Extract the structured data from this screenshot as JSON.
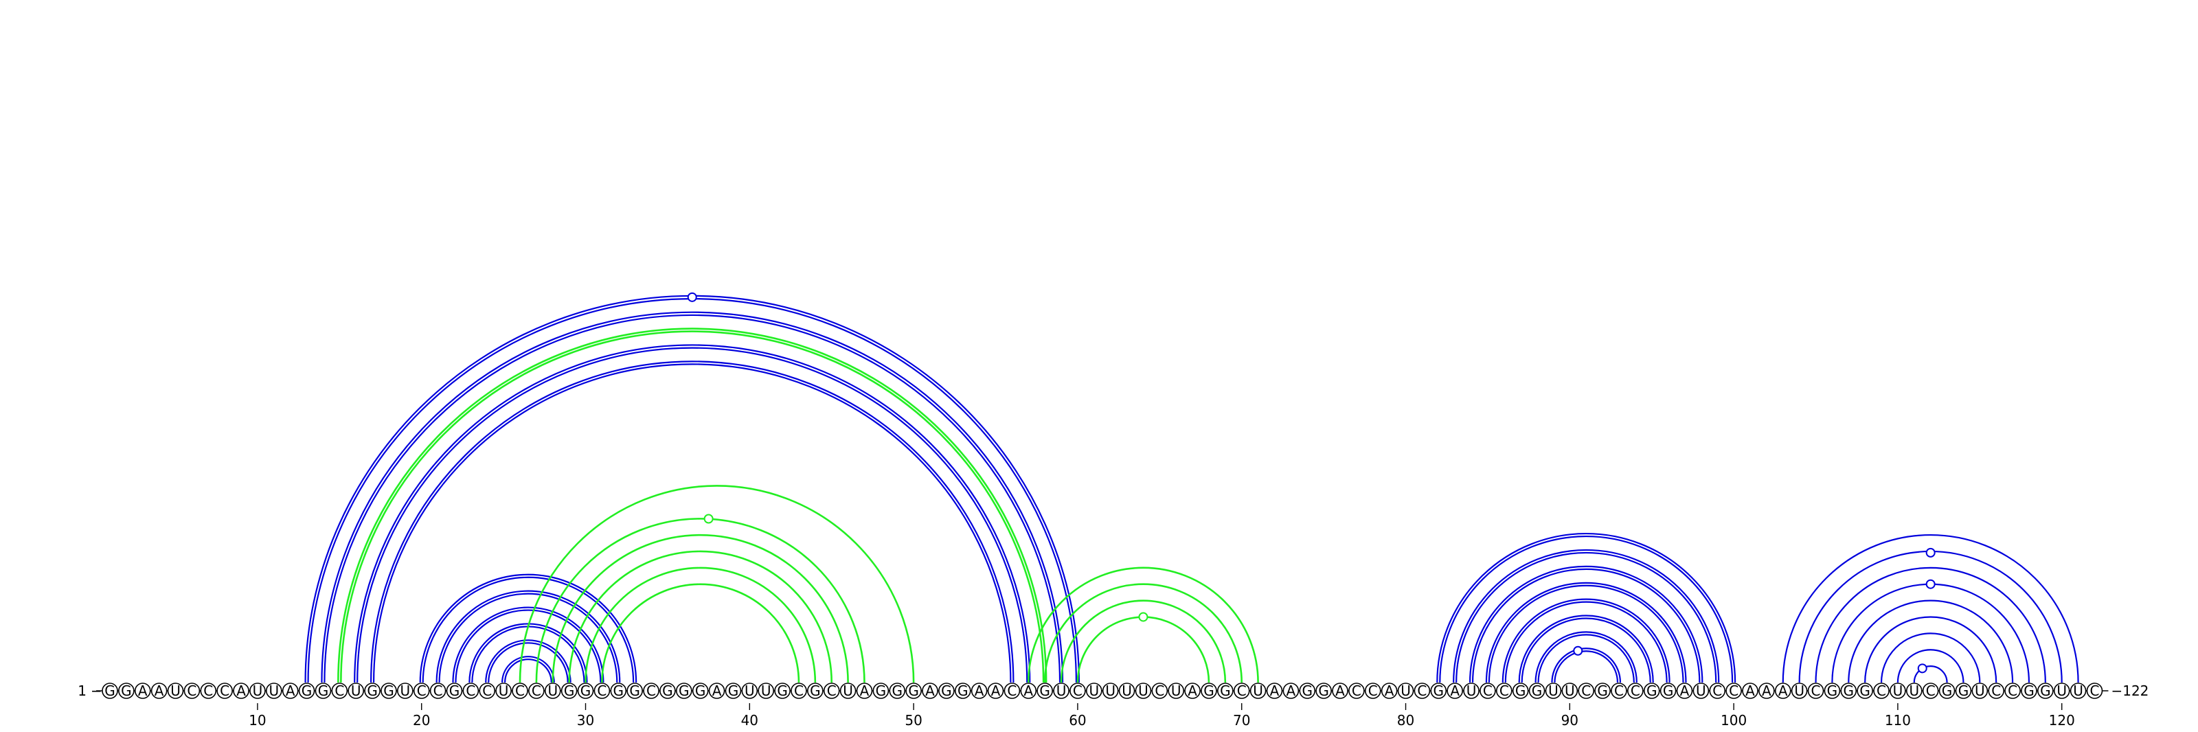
{
  "sequence": "GGAAUCCCAUUAGGCUGGUCCGCCUCCUGGCGGCGGGAGUUGCGCUAGGGAGGAACAGUCUUUUCUAGGCUAAGGACCAUCGAUCCGGUUCGCCGGAUCCAAAUCGGGCUUCGGUCCGGUUC",
  "start_label": "1",
  "end_label": "122",
  "ticks": [
    "10",
    "20",
    "30",
    "40",
    "50",
    "60",
    "70",
    "80",
    "90",
    "100",
    "110",
    "120"
  ],
  "colors": {
    "blue_arcs": "#0000dd",
    "green_arcs": "#22ee22",
    "backbone": "#000000"
  },
  "arc_groups": [
    {
      "color": "blue",
      "name": "long-stem-blue",
      "double": true,
      "pairs": [
        [
          13,
          60
        ],
        [
          14,
          59
        ],
        [
          16,
          57
        ],
        [
          17,
          56
        ]
      ],
      "marker_position": 36.5
    },
    {
      "color": "green",
      "name": "long-stem-green",
      "double": true,
      "pairs": [
        [
          15,
          58
        ]
      ]
    },
    {
      "color": "blue",
      "name": "stem-20s",
      "double": true,
      "pairs": [
        [
          20,
          33
        ],
        [
          21,
          32
        ],
        [
          22,
          31
        ],
        [
          23,
          30
        ],
        [
          24,
          29
        ],
        [
          25,
          28
        ]
      ]
    },
    {
      "color": "green",
      "name": "pseudoknot-green",
      "double": false,
      "pairs": [
        [
          26,
          50
        ],
        [
          27,
          47
        ],
        [
          28,
          46
        ],
        [
          29,
          45
        ],
        [
          30,
          44
        ],
        [
          31,
          43
        ]
      ],
      "marker_position": 37.5
    },
    {
      "color": "green",
      "name": "stem-60s",
      "double": false,
      "pairs": [
        [
          57,
          71
        ],
        [
          58,
          70
        ],
        [
          59,
          69
        ],
        [
          60,
          68
        ]
      ],
      "marker_position": 64.0
    },
    {
      "color": "blue",
      "name": "hairpin-90",
      "double": true,
      "pairs": [
        [
          82,
          100
        ],
        [
          83,
          99
        ],
        [
          84,
          98
        ],
        [
          85,
          97
        ],
        [
          86,
          96
        ],
        [
          87,
          95
        ],
        [
          88,
          94
        ],
        [
          89,
          93
        ]
      ],
      "marker_position": 90.5
    },
    {
      "color": "blue",
      "name": "hairpin-110",
      "double": false,
      "pairs": [
        [
          103,
          121
        ],
        [
          104,
          120
        ],
        [
          105,
          119
        ],
        [
          106,
          118
        ],
        [
          107,
          117
        ],
        [
          108,
          116
        ],
        [
          109,
          115
        ],
        [
          110,
          114
        ],
        [
          111,
          113
        ]
      ],
      "marker_position": 111.5
    }
  ]
}
